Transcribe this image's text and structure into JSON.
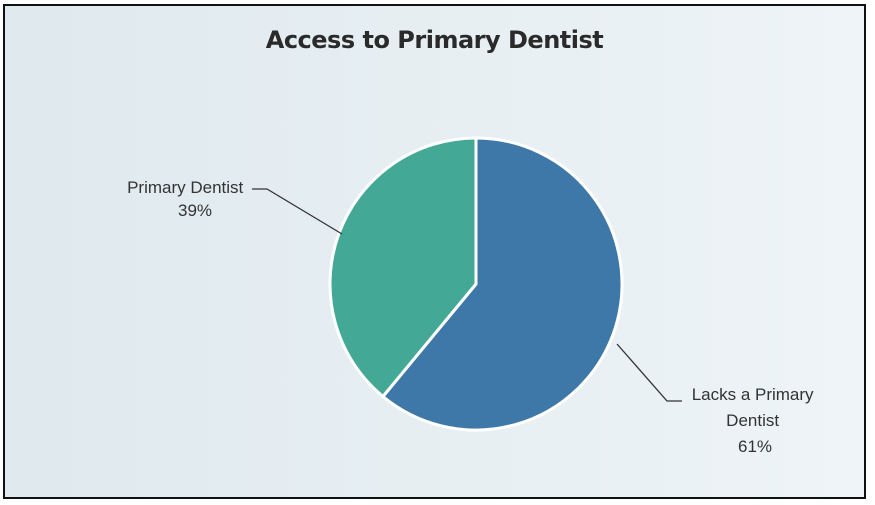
{
  "chart_data": {
    "type": "pie",
    "title": "Access to Primary Dentist",
    "slices": [
      {
        "name": "Lacks a Primary Dentist",
        "value": 61,
        "label_lines": [
          "Lacks a Primary",
          "Dentist",
          "61%"
        ],
        "color": "#3d78a8"
      },
      {
        "name": "Primary Dentist",
        "value": 39,
        "label_lines": [
          "Primary Dentist",
          "39%"
        ],
        "color": "#44a896"
      }
    ]
  }
}
